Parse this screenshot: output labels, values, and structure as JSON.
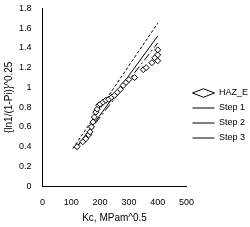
{
  "chart_data": {
    "type": "scatter",
    "x_label": "Kc, MPam^0.5",
    "y_label": "{ln1/(1-Pi)}^0.25",
    "xlim": [
      0,
      500
    ],
    "xticks": [
      0,
      100,
      200,
      300,
      400,
      500
    ],
    "ylim": [
      0,
      1.8
    ],
    "yticks": [
      0,
      0.2,
      0.4,
      0.6,
      0.8,
      1,
      1.2,
      1.4,
      1.6,
      1.8
    ],
    "grid": false,
    "legend": "right",
    "series": [
      {
        "name": "HAZ_EM",
        "type": "scatter",
        "marker": "diamond",
        "color": "#000000",
        "x": [
          120,
          140,
          150,
          160,
          165,
          170,
          175,
          180,
          185,
          190,
          195,
          200,
          210,
          220,
          230,
          240,
          250,
          260,
          270,
          280,
          290,
          300,
          320,
          350,
          360,
          380,
          390,
          400,
          400,
          400
        ],
        "values": [
          0.4,
          0.45,
          0.48,
          0.52,
          0.55,
          0.6,
          0.65,
          0.7,
          0.75,
          0.78,
          0.82,
          0.83,
          0.85,
          0.87,
          0.88,
          0.9,
          0.92,
          0.95,
          0.98,
          1.02,
          1.05,
          1.08,
          1.1,
          1.18,
          1.2,
          1.25,
          1.3,
          1.27,
          1.33,
          1.38
        ]
      },
      {
        "name": "Step 1",
        "type": "line",
        "line_style": "dashdot",
        "color": "#000000",
        "x": [
          115,
          400
        ],
        "values": [
          0.38,
          1.45
        ]
      },
      {
        "name": "Step 2",
        "type": "line",
        "line_style": "dashed",
        "color": "#000000",
        "x": [
          105,
          400
        ],
        "values": [
          0.38,
          1.65
        ]
      },
      {
        "name": "Step 3",
        "type": "line",
        "line_style": "solid",
        "color": "#000000",
        "x": [
          115,
          400
        ],
        "values": [
          0.38,
          1.52
        ]
      }
    ]
  }
}
